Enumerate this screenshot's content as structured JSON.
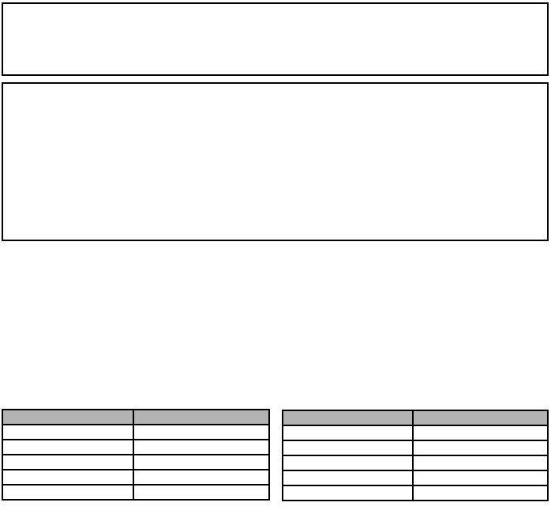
{
  "colors": {
    "page_background": "#ffffff",
    "border_color": "#000000",
    "table_header_bg": "#b3b3b3"
  },
  "frames": {
    "top": {
      "content": ""
    },
    "middle": {
      "content": ""
    }
  },
  "tables": {
    "left": {
      "headers": [
        "",
        ""
      ],
      "rows": [
        [
          "",
          ""
        ],
        [
          "",
          ""
        ],
        [
          "",
          ""
        ],
        [
          "",
          ""
        ],
        [
          "",
          ""
        ]
      ]
    },
    "right": {
      "headers": [
        "",
        ""
      ],
      "rows": [
        [
          "",
          ""
        ],
        [
          "",
          ""
        ],
        [
          "",
          ""
        ],
        [
          "",
          ""
        ],
        [
          "",
          ""
        ]
      ]
    }
  }
}
